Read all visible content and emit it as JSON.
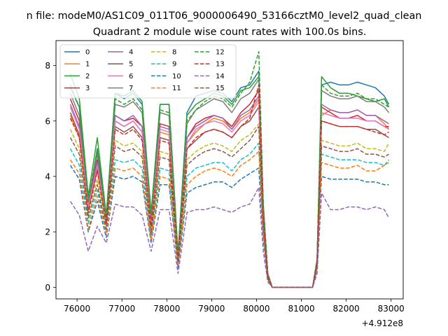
{
  "chart_data": {
    "type": "line",
    "suptitle": "n file: modeM0/AS1C09_011T06_9000006490_53166cztM0_level2_quad_clean",
    "title": "Quadrant 2 module wise count rates with 100.0s bins.",
    "xlabel": "",
    "ylabel": "",
    "x_offset_label": "+4.912e8",
    "xlim": [
      75530,
      83270
    ],
    "ylim": [
      -0.42,
      8.9
    ],
    "x_ticks": [
      76000,
      77000,
      78000,
      79000,
      80000,
      81000,
      82000,
      83000
    ],
    "x_tick_labels": [
      "76000",
      "77000",
      "78000",
      "79000",
      "80000",
      "81000",
      "82000",
      "83000"
    ],
    "y_ticks": [
      0,
      2,
      4,
      6,
      8
    ],
    "y_tick_labels": [
      "0",
      "2",
      "4",
      "6",
      "8"
    ],
    "legend": {
      "location": "top-left",
      "columns": 4
    },
    "key_x": [
      75850,
      76050,
      76250,
      76450,
      76650,
      76850,
      77050,
      77250,
      77450,
      77650,
      77850,
      78050,
      78250,
      78450,
      78650,
      78850,
      79050,
      79250,
      79450,
      79650,
      79850,
      80050,
      80150,
      80250,
      80350,
      80450,
      81250,
      81350,
      81450,
      81650,
      81850,
      82050,
      82250,
      82450,
      82650,
      82850,
      82950
    ],
    "series": [
      {
        "name": "0",
        "color": "#1f77b4",
        "dash": "solid",
        "values": [
          7.2,
          6.5,
          3.0,
          5.0,
          2.5,
          7.0,
          6.8,
          7.0,
          6.6,
          2.6,
          6.6,
          6.6,
          1.2,
          6.3,
          6.9,
          7.0,
          7.1,
          7.0,
          6.7,
          7.2,
          7.3,
          7.8,
          3.0,
          0.5,
          0.0,
          0.0,
          0.0,
          1.0,
          7.3,
          7.4,
          7.3,
          7.3,
          7.4,
          7.3,
          7.2,
          6.9,
          6.6
        ]
      },
      {
        "name": "1",
        "color": "#ff7f0e",
        "dash": "solid",
        "values": [
          6.2,
          5.4,
          2.8,
          4.2,
          2.4,
          6.0,
          5.8,
          6.0,
          5.6,
          2.3,
          5.6,
          5.5,
          1.0,
          5.2,
          5.6,
          5.9,
          6.1,
          6.0,
          5.7,
          6.1,
          6.3,
          6.8,
          2.6,
          0.4,
          0.0,
          0.0,
          0.0,
          0.9,
          6.2,
          6.4,
          6.3,
          6.3,
          6.4,
          6.2,
          6.2,
          5.9,
          5.7
        ]
      },
      {
        "name": "2",
        "color": "#2ca02c",
        "dash": "solid",
        "values": [
          7.7,
          6.8,
          3.3,
          5.4,
          2.6,
          7.0,
          6.9,
          7.1,
          6.7,
          2.7,
          6.6,
          6.6,
          1.2,
          6.2,
          6.6,
          6.8,
          7.0,
          6.9,
          6.6,
          7.1,
          7.2,
          7.6,
          3.0,
          0.5,
          0.0,
          0.0,
          0.0,
          1.0,
          7.6,
          7.2,
          7.0,
          7.0,
          6.9,
          6.8,
          6.7,
          6.8,
          6.5
        ]
      },
      {
        "name": "3",
        "color": "#d62728",
        "dash": "solid",
        "values": [
          6.8,
          6.0,
          3.0,
          4.6,
          2.5,
          6.2,
          6.0,
          6.1,
          5.8,
          2.4,
          5.9,
          5.8,
          1.1,
          5.4,
          5.9,
          6.1,
          6.2,
          6.1,
          5.8,
          6.3,
          6.6,
          7.1,
          2.7,
          0.4,
          0.0,
          0.0,
          0.0,
          1.0,
          6.5,
          6.3,
          6.1,
          6.1,
          6.2,
          6.0,
          6.0,
          5.8,
          5.8
        ]
      },
      {
        "name": "4",
        "color": "#9467bd",
        "dash": "solid",
        "values": [
          6.6,
          5.8,
          2.9,
          4.5,
          2.4,
          6.2,
          6.0,
          6.2,
          5.8,
          2.4,
          5.8,
          5.7,
          1.1,
          5.4,
          5.8,
          6.0,
          6.2,
          6.1,
          5.7,
          6.2,
          6.4,
          6.9,
          2.7,
          0.4,
          0.0,
          0.0,
          0.0,
          1.0,
          6.6,
          6.4,
          6.3,
          6.3,
          6.4,
          6.2,
          6.2,
          6.0,
          5.9
        ]
      },
      {
        "name": "5",
        "color": "#8c564b",
        "dash": "solid",
        "values": [
          6.3,
          5.5,
          2.8,
          4.3,
          2.3,
          5.8,
          5.6,
          5.8,
          5.4,
          2.2,
          5.4,
          5.3,
          1.0,
          5.0,
          5.3,
          5.6,
          5.7,
          5.6,
          5.4,
          5.8,
          6.0,
          6.5,
          2.5,
          0.4,
          0.0,
          0.0,
          0.0,
          0.9,
          6.0,
          5.9,
          5.8,
          5.8,
          5.8,
          5.7,
          5.7,
          5.5,
          5.4
        ]
      },
      {
        "name": "6",
        "color": "#e377c2",
        "dash": "solid",
        "values": [
          6.5,
          5.7,
          2.9,
          4.4,
          2.4,
          6.0,
          5.8,
          6.0,
          5.6,
          2.3,
          5.7,
          5.6,
          1.0,
          5.2,
          5.7,
          5.9,
          6.0,
          5.9,
          5.6,
          6.0,
          6.2,
          6.7,
          2.6,
          0.4,
          0.0,
          0.0,
          0.0,
          1.0,
          6.3,
          6.2,
          6.1,
          6.1,
          6.1,
          6.0,
          6.0,
          5.8,
          5.7
        ]
      },
      {
        "name": "7",
        "color": "#7f7f7f",
        "dash": "solid",
        "values": [
          7.0,
          6.2,
          3.1,
          4.8,
          2.5,
          6.6,
          6.5,
          6.7,
          6.3,
          2.5,
          6.3,
          6.2,
          1.1,
          5.9,
          6.4,
          6.6,
          6.8,
          6.7,
          6.3,
          6.8,
          7.0,
          7.5,
          2.9,
          0.5,
          0.0,
          0.0,
          0.0,
          1.0,
          7.1,
          6.9,
          6.8,
          6.8,
          6.9,
          6.7,
          6.7,
          6.5,
          6.3
        ]
      },
      {
        "name": "8",
        "color": "#bcbd22",
        "dash": "dashed",
        "values": [
          5.7,
          5.0,
          2.6,
          3.9,
          2.2,
          5.3,
          5.1,
          5.2,
          4.9,
          2.0,
          4.9,
          4.8,
          0.9,
          4.6,
          4.9,
          5.1,
          5.2,
          5.1,
          4.9,
          5.3,
          5.5,
          5.9,
          2.3,
          0.3,
          0.0,
          0.0,
          0.0,
          0.8,
          5.3,
          5.2,
          5.1,
          5.1,
          5.2,
          5.0,
          5.0,
          4.9,
          5.2
        ]
      },
      {
        "name": "9",
        "color": "#17becf",
        "dash": "dashed",
        "values": [
          5.0,
          4.4,
          2.3,
          3.5,
          2.0,
          4.6,
          4.5,
          4.6,
          4.3,
          1.8,
          4.3,
          4.2,
          0.8,
          4.0,
          4.3,
          4.4,
          4.5,
          4.5,
          4.2,
          4.6,
          4.8,
          5.2,
          2.0,
          0.3,
          0.0,
          0.0,
          0.0,
          0.7,
          4.8,
          4.7,
          4.6,
          4.6,
          4.6,
          4.5,
          4.5,
          4.4,
          4.6
        ]
      },
      {
        "name": "10",
        "color": "#1f77b4",
        "dash": "dashed",
        "values": [
          4.4,
          3.9,
          2.0,
          3.1,
          1.8,
          4.0,
          3.9,
          4.0,
          3.8,
          1.6,
          3.7,
          3.7,
          0.7,
          3.4,
          3.6,
          3.7,
          3.8,
          3.8,
          3.6,
          3.9,
          4.1,
          4.3,
          1.7,
          0.3,
          0.0,
          0.0,
          0.0,
          0.6,
          4.0,
          3.9,
          3.9,
          3.9,
          3.9,
          3.8,
          3.8,
          3.7,
          3.7
        ]
      },
      {
        "name": "11",
        "color": "#ff7f0e",
        "dash": "dashed",
        "values": [
          4.6,
          4.1,
          2.1,
          3.3,
          1.9,
          4.3,
          4.2,
          4.3,
          4.0,
          1.7,
          4.0,
          3.9,
          0.8,
          3.7,
          4.0,
          4.2,
          4.3,
          4.2,
          4.0,
          4.4,
          4.6,
          4.9,
          1.9,
          0.3,
          0.0,
          0.0,
          0.0,
          0.7,
          4.5,
          4.4,
          4.3,
          4.3,
          4.4,
          4.2,
          4.2,
          4.4,
          4.5
        ]
      },
      {
        "name": "12",
        "color": "#2ca02c",
        "dash": "dashed",
        "values": [
          7.3,
          6.5,
          3.1,
          5.0,
          2.5,
          6.8,
          6.6,
          6.8,
          6.4,
          2.6,
          6.4,
          6.3,
          1.1,
          6.0,
          6.4,
          6.7,
          6.9,
          6.8,
          6.5,
          7.0,
          7.4,
          8.5,
          3.0,
          0.5,
          0.0,
          0.0,
          0.0,
          1.0,
          7.3,
          7.0,
          6.9,
          6.9,
          7.0,
          6.8,
          6.8,
          6.6,
          6.5
        ]
      },
      {
        "name": "13",
        "color": "#d62728",
        "dash": "dashed",
        "values": [
          6.1,
          5.4,
          2.7,
          4.2,
          2.3,
          5.7,
          5.5,
          5.7,
          5.3,
          2.2,
          5.3,
          5.2,
          1.0,
          5.0,
          5.4,
          5.6,
          5.7,
          5.6,
          5.4,
          5.8,
          6.1,
          7.3,
          2.5,
          0.4,
          0.0,
          0.0,
          0.0,
          0.9,
          6.0,
          5.9,
          5.8,
          5.8,
          5.8,
          5.7,
          5.6,
          5.5,
          5.6
        ]
      },
      {
        "name": "14",
        "color": "#9467bd",
        "dash": "dashed",
        "values": [
          3.1,
          2.6,
          1.3,
          2.2,
          1.6,
          3.0,
          2.9,
          2.9,
          2.6,
          1.3,
          2.8,
          2.8,
          0.5,
          2.7,
          2.8,
          2.8,
          2.9,
          2.8,
          2.7,
          2.9,
          3.0,
          3.6,
          1.3,
          0.2,
          0.0,
          0.0,
          0.0,
          0.5,
          3.4,
          2.8,
          2.8,
          2.9,
          2.9,
          2.8,
          2.9,
          2.8,
          2.5
        ]
      },
      {
        "name": "15",
        "color": "#8c564b",
        "dash": "dashed",
        "values": [
          5.4,
          4.8,
          2.5,
          3.7,
          2.1,
          5.1,
          4.9,
          5.0,
          4.7,
          1.9,
          4.7,
          4.6,
          0.9,
          4.4,
          4.7,
          4.9,
          5.0,
          4.9,
          4.7,
          5.0,
          5.3,
          5.8,
          2.2,
          0.3,
          0.0,
          0.0,
          0.0,
          0.8,
          5.1,
          5.0,
          4.9,
          4.9,
          5.0,
          4.8,
          4.8,
          4.7,
          4.8
        ]
      }
    ]
  }
}
